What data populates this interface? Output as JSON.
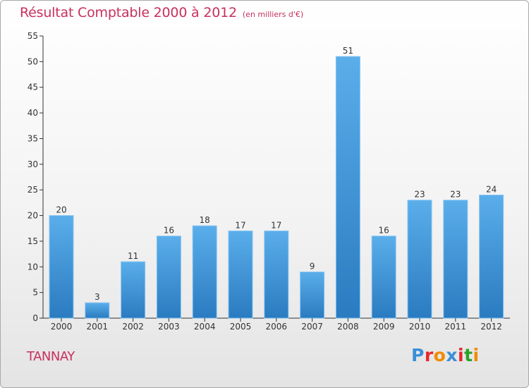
{
  "chart_data": {
    "type": "bar",
    "title": "Résultat Comptable 2000 à 2012",
    "subtitle": "(en milliers d'€)",
    "categories": [
      "2000",
      "2001",
      "2002",
      "2003",
      "2004",
      "2005",
      "2006",
      "2007",
      "2008",
      "2009",
      "2010",
      "2011",
      "2012"
    ],
    "values": [
      20,
      3,
      11,
      16,
      18,
      17,
      17,
      9,
      51,
      16,
      23,
      23,
      24
    ],
    "ylim": [
      0,
      55
    ],
    "yticks": [
      0,
      5,
      10,
      15,
      20,
      25,
      30,
      35,
      40,
      45,
      50,
      55
    ],
    "grid": false,
    "bar_color_top": "#5aaeea",
    "bar_color_bottom": "#2a7bc0",
    "bar_edge": "#86c4f2"
  },
  "footer": {
    "commune": "TANNAY",
    "brand": "Proxiti",
    "brand_colors": [
      "#3b8fd8",
      "#e8262b",
      "#f08a00",
      "#3b8fd8",
      "#e8262b",
      "#2aa22a",
      "#f08a00"
    ]
  },
  "colors": {
    "title": "#c8305e",
    "axis": "#333333",
    "text": "#333333"
  }
}
